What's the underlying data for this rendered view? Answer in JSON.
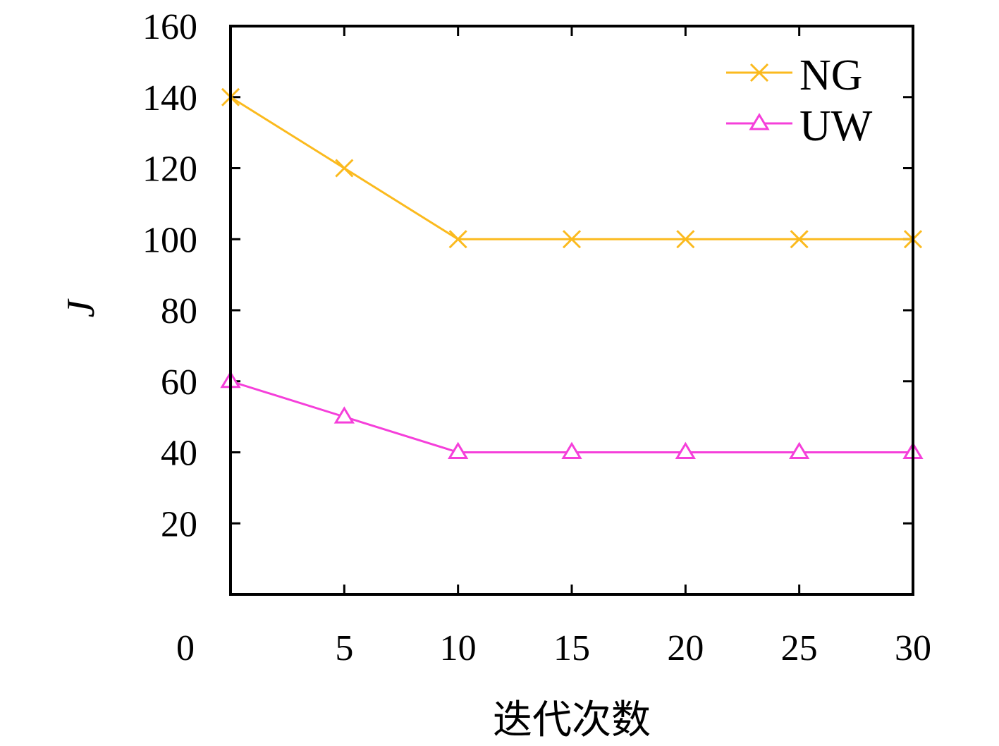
{
  "chart_data": {
    "type": "line",
    "title": "",
    "xlabel": "迭代次数",
    "ylabel": "J",
    "xlim": [
      0,
      30
    ],
    "ylim": [
      0,
      160
    ],
    "x_ticks": [
      5,
      10,
      15,
      20,
      25,
      30
    ],
    "y_ticks": [
      20,
      40,
      60,
      80,
      100,
      120,
      140,
      160
    ],
    "origin_label": "0",
    "grid": false,
    "legend_position": "top-right",
    "x": [
      0,
      5,
      10,
      15,
      20,
      25,
      30
    ],
    "series": [
      {
        "name": "NG",
        "values": [
          140,
          120,
          100,
          100,
          100,
          100,
          100
        ],
        "color": "#FBBA1E",
        "marker": "x"
      },
      {
        "name": "UW",
        "values": [
          60,
          50,
          40,
          40,
          40,
          40,
          40
        ],
        "color": "#F53FDA",
        "marker": "triangle"
      }
    ]
  }
}
